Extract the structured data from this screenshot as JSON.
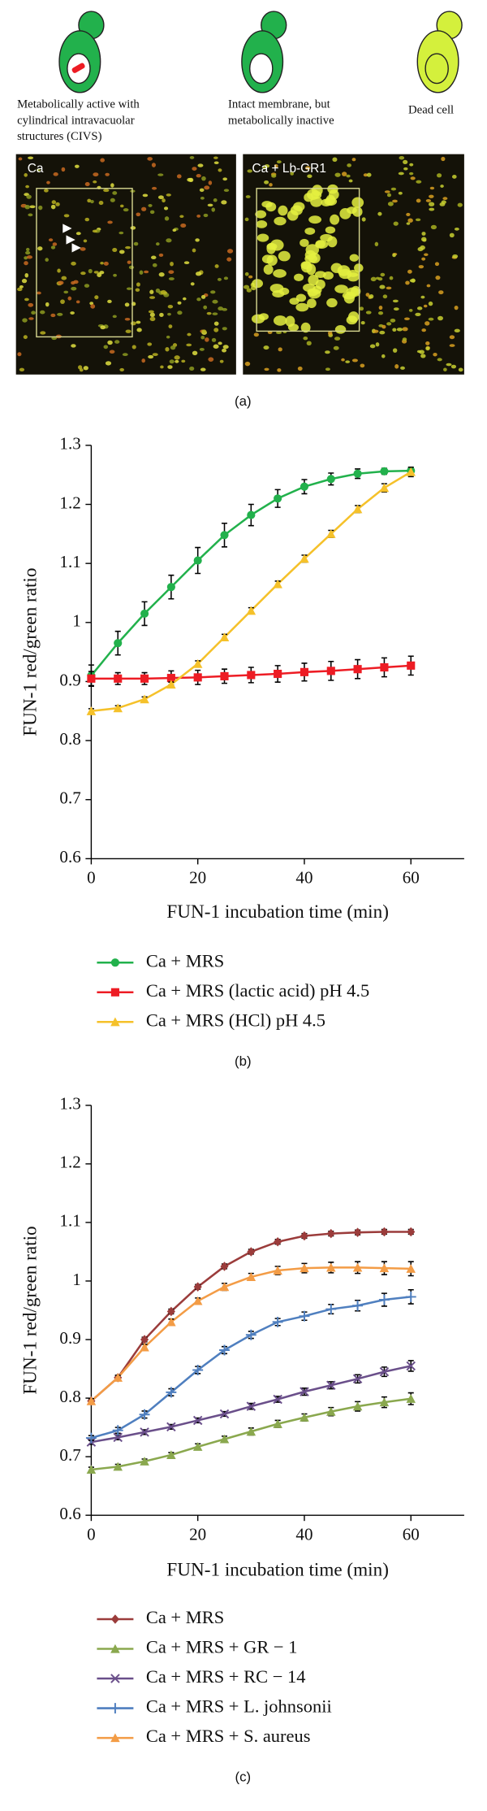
{
  "panel_a": {
    "captions": [
      [
        "Metabolically active with",
        "cylindrical intravacuolar",
        "structures (CIVS)"
      ],
      [
        "Intact membrane, but",
        "metabolically inactive"
      ],
      [
        "Dead cell"
      ]
    ],
    "images": [
      "Ca",
      "Ca + Lb-GR1"
    ],
    "label": "(a)"
  },
  "chart_data": [
    {
      "type": "line",
      "label": "(b)",
      "xlabel": "FUN-1 incubation time (min)",
      "ylabel": "FUN-1 red/green ratio",
      "x": [
        0,
        5,
        10,
        15,
        20,
        25,
        30,
        35,
        40,
        45,
        50,
        55,
        60
      ],
      "xlim": [
        0,
        70
      ],
      "xticks": [
        0,
        20,
        40,
        60
      ],
      "ylim": [
        0.6,
        1.3
      ],
      "yticks": [
        0.6,
        0.7,
        0.8,
        0.9,
        1,
        1.1,
        1.2,
        1.3
      ],
      "series": [
        {
          "name": "Ca + MRS",
          "color": "#22b14c",
          "marker": "circle",
          "values": [
            0.91,
            0.965,
            1.015,
            1.06,
            1.105,
            1.148,
            1.182,
            1.21,
            1.23,
            1.243,
            1.252,
            1.256,
            1.257
          ],
          "errors": [
            0.018,
            0.02,
            0.02,
            0.02,
            0.022,
            0.02,
            0.018,
            0.015,
            0.012,
            0.01,
            0.008,
            0.005,
            0.005
          ]
        },
        {
          "name": "Ca + MRS (lactic acid) pH 4.5",
          "color": "#ed1c24",
          "marker": "square",
          "values": [
            0.905,
            0.905,
            0.905,
            0.906,
            0.907,
            0.909,
            0.911,
            0.913,
            0.916,
            0.918,
            0.921,
            0.924,
            0.927
          ],
          "errors": [
            0.012,
            0.01,
            0.01,
            0.012,
            0.012,
            0.012,
            0.013,
            0.014,
            0.015,
            0.016,
            0.016,
            0.016,
            0.016
          ]
        },
        {
          "name": "Ca + MRS (HCl) pH 4.5",
          "color": "#f5c12a",
          "marker": "triangle",
          "values": [
            0.85,
            0.855,
            0.87,
            0.895,
            0.93,
            0.975,
            1.02,
            1.065,
            1.108,
            1.15,
            1.192,
            1.228,
            1.255
          ],
          "errors": [
            0.004,
            0.004,
            0.004,
            0.004,
            0.005,
            0.005,
            0.005,
            0.005,
            0.006,
            0.006,
            0.006,
            0.007,
            0.008
          ]
        }
      ]
    },
    {
      "type": "line",
      "label": "(c)",
      "xlabel": "FUN-1 incubation time (min)",
      "ylabel": "FUN-1 red/green ratio",
      "x": [
        0,
        5,
        10,
        15,
        20,
        25,
        30,
        35,
        40,
        45,
        50,
        55,
        60
      ],
      "xlim": [
        0,
        70
      ],
      "xticks": [
        0,
        20,
        40,
        60
      ],
      "ylim": [
        0.6,
        1.3
      ],
      "yticks": [
        0.6,
        0.7,
        0.8,
        0.9,
        1,
        1.1,
        1.2,
        1.3
      ],
      "series": [
        {
          "name": "Ca + MRS",
          "color": "#9b3c3b",
          "marker": "diamond",
          "values": [
            0.795,
            0.835,
            0.9,
            0.948,
            0.99,
            1.025,
            1.05,
            1.067,
            1.077,
            1.081,
            1.083,
            1.084,
            1.084
          ],
          "errors": [
            0.004,
            0.004,
            0.004,
            0.004,
            0.004,
            0.004,
            0.004,
            0.004,
            0.004,
            0.004,
            0.004,
            0.004,
            0.004
          ]
        },
        {
          "name": "Ca + MRS + GR − 1",
          "color": "#8aa84e",
          "marker": "triangle",
          "values": [
            0.678,
            0.683,
            0.692,
            0.703,
            0.717,
            0.73,
            0.743,
            0.756,
            0.767,
            0.777,
            0.786,
            0.793,
            0.799
          ],
          "errors": [
            0.004,
            0.004,
            0.004,
            0.004,
            0.005,
            0.005,
            0.006,
            0.006,
            0.006,
            0.007,
            0.008,
            0.009,
            0.01
          ]
        },
        {
          "name": "Ca + MRS + RC − 14",
          "color": "#6a4f8a",
          "marker": "x",
          "values": [
            0.725,
            0.733,
            0.742,
            0.751,
            0.762,
            0.773,
            0.786,
            0.798,
            0.811,
            0.822,
            0.833,
            0.845,
            0.855
          ],
          "errors": [
            0.004,
            0.004,
            0.004,
            0.004,
            0.004,
            0.004,
            0.005,
            0.005,
            0.006,
            0.006,
            0.007,
            0.008,
            0.009
          ]
        },
        {
          "name": "Ca + MRS + L. johnsonii",
          "color": "#4f7fbf",
          "marker": "plus",
          "values": [
            0.732,
            0.745,
            0.772,
            0.81,
            0.848,
            0.882,
            0.908,
            0.93,
            0.94,
            0.952,
            0.958,
            0.968,
            0.973
          ],
          "errors": [
            0.004,
            0.005,
            0.006,
            0.006,
            0.006,
            0.006,
            0.006,
            0.006,
            0.007,
            0.008,
            0.009,
            0.011,
            0.012
          ]
        },
        {
          "name": "Ca + MRS + S. aureus",
          "color": "#f39c46",
          "marker": "triangle",
          "values": [
            0.795,
            0.835,
            0.887,
            0.93,
            0.966,
            0.99,
            1.007,
            1.018,
            1.022,
            1.023,
            1.023,
            1.022,
            1.021
          ],
          "errors": [
            0.004,
            0.004,
            0.005,
            0.005,
            0.005,
            0.006,
            0.006,
            0.007,
            0.008,
            0.009,
            0.01,
            0.011,
            0.012
          ]
        }
      ]
    }
  ]
}
